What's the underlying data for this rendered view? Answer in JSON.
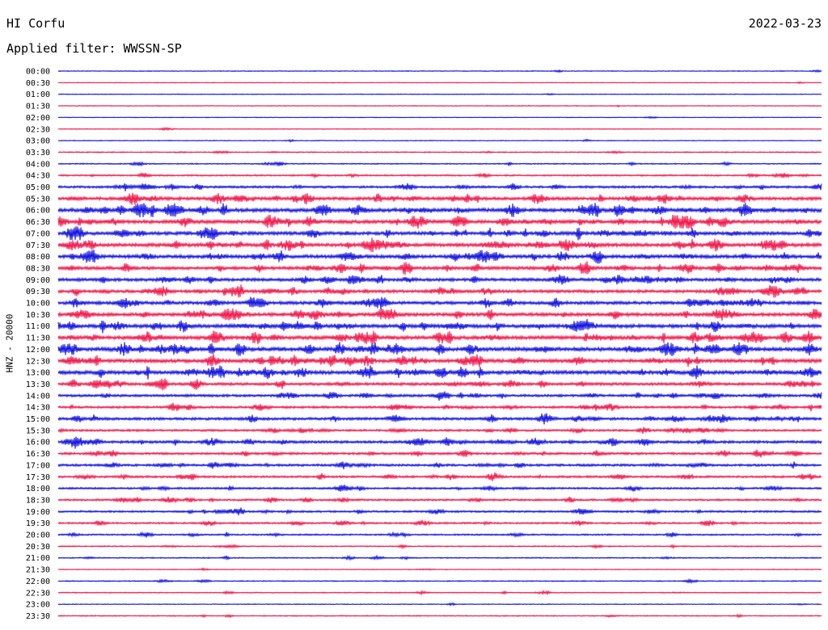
{
  "header": {
    "station": "HI Corfu",
    "date": "2022-03-23",
    "filter": "Applied filter: WWSSN-SP"
  },
  "colors": {
    "even_row": "#1010e0",
    "odd_row": "#f0164a",
    "background": "#ffffff"
  },
  "chart_data": {
    "type": "line",
    "title": "HI Corfu",
    "subtitle": "2022-03-23",
    "ylabel": "HNZ - 20000",
    "xlabel": "",
    "grid": false,
    "legend": "none",
    "tick_labels": [
      "00:00",
      "00:30",
      "01:00",
      "01:30",
      "02:00",
      "02:30",
      "03:00",
      "03:30",
      "04:00",
      "04:30",
      "05:00",
      "05:30",
      "06:00",
      "06:30",
      "07:00",
      "07:30",
      "08:00",
      "08:30",
      "09:00",
      "09:30",
      "10:00",
      "10:30",
      "11:00",
      "11:30",
      "12:00",
      "12:30",
      "13:00",
      "13:30",
      "14:00",
      "14:30",
      "15:00",
      "15:30",
      "16:00",
      "16:30",
      "17:00",
      "17:30",
      "18:00",
      "18:30",
      "19:00",
      "19:30",
      "20:00",
      "20:30",
      "21:00",
      "21:30",
      "22:00",
      "22:30",
      "23:00",
      "23:30"
    ],
    "row_duration_minutes": 30,
    "row_activity": [
      0.05,
      0.02,
      0.03,
      0.05,
      0.02,
      0.03,
      0.04,
      0.12,
      0.15,
      0.25,
      0.45,
      0.7,
      0.85,
      0.8,
      0.75,
      0.8,
      0.75,
      0.7,
      0.65,
      0.65,
      0.7,
      0.75,
      0.8,
      0.8,
      0.9,
      0.8,
      0.85,
      0.6,
      0.5,
      0.45,
      0.55,
      0.4,
      0.55,
      0.45,
      0.45,
      0.4,
      0.35,
      0.35,
      0.35,
      0.3,
      0.25,
      0.15,
      0.15,
      0.05,
      0.1,
      0.12,
      0.05,
      0.1
    ]
  }
}
